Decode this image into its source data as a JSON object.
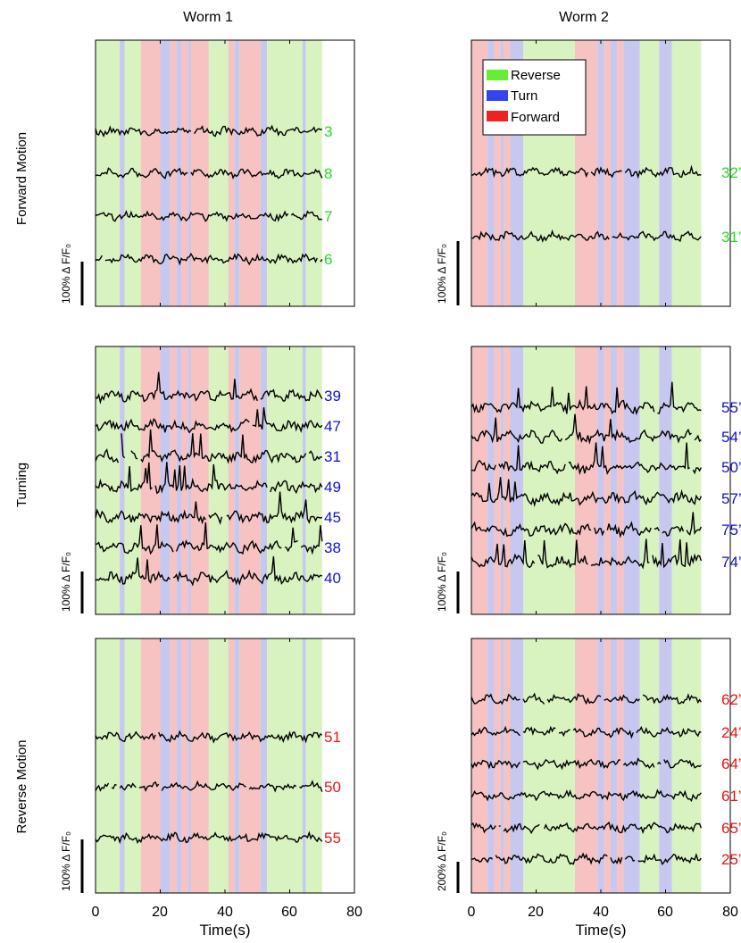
{
  "figure": {
    "column_titles": [
      "Worm 1",
      "Worm 2"
    ],
    "row_titles": [
      "Forward Motion",
      "Turning",
      "Reverse Motion"
    ],
    "x_axis_label": "Time(s)",
    "x_ticks": [
      "0",
      "20",
      "40",
      "60",
      "80"
    ]
  },
  "legend": [
    {
      "label": "Reverse",
      "color": "#66ee33"
    },
    {
      "label": "Turn",
      "color": "#3344ee"
    },
    {
      "label": "Forward",
      "color": "#ee2222"
    }
  ],
  "colors": {
    "reverse_band": "#d8f3c0",
    "turn_band": "#c6c8f0",
    "forward_band": "#f6c2c2",
    "trace": "#000000",
    "forward_neuron": "#22dd22",
    "turn_neuron": "#1111cc",
    "reverse_neuron": "#ee1111"
  },
  "chart_data": [
    {
      "type": "line",
      "panel": "worm1-forward",
      "worm": "Worm 1",
      "category": "Forward Motion",
      "xlim": [
        0,
        80
      ],
      "scale_bar_label": "100% Δ F/F₀",
      "neuron_color": "#22dd22",
      "neurons": [
        "3",
        "8",
        "7",
        "6"
      ],
      "behavior_bands": [
        {
          "state": "reverse",
          "start": 0,
          "end": 7.5
        },
        {
          "state": "turn",
          "start": 7.5,
          "end": 9
        },
        {
          "state": "reverse",
          "start": 9,
          "end": 14
        },
        {
          "state": "forward",
          "start": 14,
          "end": 20
        },
        {
          "state": "turn",
          "start": 20,
          "end": 23
        },
        {
          "state": "forward",
          "start": 23,
          "end": 25
        },
        {
          "state": "turn",
          "start": 25,
          "end": 26.5
        },
        {
          "state": "forward",
          "start": 26.5,
          "end": 28.5
        },
        {
          "state": "turn",
          "start": 28.5,
          "end": 29.5
        },
        {
          "state": "forward",
          "start": 29.5,
          "end": 35
        },
        {
          "state": "reverse",
          "start": 35,
          "end": 41
        },
        {
          "state": "forward",
          "start": 41,
          "end": 43
        },
        {
          "state": "turn",
          "start": 43,
          "end": 44.5
        },
        {
          "state": "forward",
          "start": 44.5,
          "end": 51
        },
        {
          "state": "turn",
          "start": 51,
          "end": 53
        },
        {
          "state": "reverse",
          "start": 53,
          "end": 64
        },
        {
          "state": "turn",
          "start": 64,
          "end": 65
        },
        {
          "state": "reverse",
          "start": 65,
          "end": 70
        }
      ]
    },
    {
      "type": "line",
      "panel": "worm2-forward",
      "worm": "Worm 2",
      "category": "Forward Motion",
      "xlim": [
        0,
        80
      ],
      "scale_bar_label": "100% Δ F/F₀",
      "neuron_color": "#22dd22",
      "neurons": [
        "32’",
        "31’"
      ],
      "behavior_bands": [
        {
          "state": "forward",
          "start": 0,
          "end": 5
        },
        {
          "state": "turn",
          "start": 5,
          "end": 7
        },
        {
          "state": "forward",
          "start": 7,
          "end": 9
        },
        {
          "state": "turn",
          "start": 9,
          "end": 10
        },
        {
          "state": "forward",
          "start": 10,
          "end": 12
        },
        {
          "state": "turn",
          "start": 12,
          "end": 16
        },
        {
          "state": "reverse",
          "start": 16,
          "end": 32
        },
        {
          "state": "forward",
          "start": 32,
          "end": 39
        },
        {
          "state": "turn",
          "start": 39,
          "end": 41
        },
        {
          "state": "forward",
          "start": 41,
          "end": 43
        },
        {
          "state": "turn",
          "start": 43,
          "end": 45
        },
        {
          "state": "forward",
          "start": 45,
          "end": 47
        },
        {
          "state": "turn",
          "start": 47,
          "end": 52
        },
        {
          "state": "reverse",
          "start": 52,
          "end": 58
        },
        {
          "state": "turn",
          "start": 58,
          "end": 62
        },
        {
          "state": "reverse",
          "start": 62,
          "end": 71
        }
      ]
    },
    {
      "type": "line",
      "panel": "worm1-turning",
      "worm": "Worm 1",
      "category": "Turning",
      "xlim": [
        0,
        80
      ],
      "scale_bar_label": "100% Δ F/F₀",
      "neuron_color": "#1111cc",
      "neurons": [
        "39",
        "47",
        "31",
        "49",
        "45",
        "38",
        "40"
      ],
      "behavior_bands": [
        {
          "state": "reverse",
          "start": 0,
          "end": 7.5
        },
        {
          "state": "turn",
          "start": 7.5,
          "end": 9
        },
        {
          "state": "reverse",
          "start": 9,
          "end": 14
        },
        {
          "state": "forward",
          "start": 14,
          "end": 20
        },
        {
          "state": "turn",
          "start": 20,
          "end": 23
        },
        {
          "state": "forward",
          "start": 23,
          "end": 25
        },
        {
          "state": "turn",
          "start": 25,
          "end": 26.5
        },
        {
          "state": "forward",
          "start": 26.5,
          "end": 28.5
        },
        {
          "state": "turn",
          "start": 28.5,
          "end": 29.5
        },
        {
          "state": "forward",
          "start": 29.5,
          "end": 35
        },
        {
          "state": "reverse",
          "start": 35,
          "end": 41
        },
        {
          "state": "forward",
          "start": 41,
          "end": 43
        },
        {
          "state": "turn",
          "start": 43,
          "end": 44.5
        },
        {
          "state": "forward",
          "start": 44.5,
          "end": 51
        },
        {
          "state": "turn",
          "start": 51,
          "end": 53
        },
        {
          "state": "reverse",
          "start": 53,
          "end": 64
        },
        {
          "state": "turn",
          "start": 64,
          "end": 65
        },
        {
          "state": "reverse",
          "start": 65,
          "end": 70
        }
      ]
    },
    {
      "type": "line",
      "panel": "worm2-turning",
      "worm": "Worm 2",
      "category": "Turning",
      "xlim": [
        0,
        80
      ],
      "scale_bar_label": "100% Δ F/F₀",
      "neuron_color": "#1111cc",
      "neurons": [
        "55’",
        "54’",
        "50’",
        "57’",
        "75’",
        "74’"
      ],
      "behavior_bands": [
        {
          "state": "forward",
          "start": 0,
          "end": 5
        },
        {
          "state": "turn",
          "start": 5,
          "end": 7
        },
        {
          "state": "forward",
          "start": 7,
          "end": 9
        },
        {
          "state": "turn",
          "start": 9,
          "end": 10
        },
        {
          "state": "forward",
          "start": 10,
          "end": 12
        },
        {
          "state": "turn",
          "start": 12,
          "end": 16
        },
        {
          "state": "reverse",
          "start": 16,
          "end": 32
        },
        {
          "state": "forward",
          "start": 32,
          "end": 39
        },
        {
          "state": "turn",
          "start": 39,
          "end": 41
        },
        {
          "state": "forward",
          "start": 41,
          "end": 43
        },
        {
          "state": "turn",
          "start": 43,
          "end": 45
        },
        {
          "state": "forward",
          "start": 45,
          "end": 47
        },
        {
          "state": "turn",
          "start": 47,
          "end": 52
        },
        {
          "state": "reverse",
          "start": 52,
          "end": 58
        },
        {
          "state": "turn",
          "start": 58,
          "end": 62
        },
        {
          "state": "reverse",
          "start": 62,
          "end": 71
        }
      ]
    },
    {
      "type": "line",
      "panel": "worm1-reverse",
      "worm": "Worm 1",
      "category": "Reverse Motion",
      "xlim": [
        0,
        80
      ],
      "scale_bar_label": "100% Δ F/F₀",
      "neuron_color": "#ee1111",
      "neurons": [
        "51",
        "50",
        "55"
      ],
      "behavior_bands": [
        {
          "state": "reverse",
          "start": 0,
          "end": 7.5
        },
        {
          "state": "turn",
          "start": 7.5,
          "end": 9
        },
        {
          "state": "reverse",
          "start": 9,
          "end": 14
        },
        {
          "state": "forward",
          "start": 14,
          "end": 20
        },
        {
          "state": "turn",
          "start": 20,
          "end": 23
        },
        {
          "state": "forward",
          "start": 23,
          "end": 25
        },
        {
          "state": "turn",
          "start": 25,
          "end": 26.5
        },
        {
          "state": "forward",
          "start": 26.5,
          "end": 28.5
        },
        {
          "state": "turn",
          "start": 28.5,
          "end": 29.5
        },
        {
          "state": "forward",
          "start": 29.5,
          "end": 35
        },
        {
          "state": "reverse",
          "start": 35,
          "end": 41
        },
        {
          "state": "forward",
          "start": 41,
          "end": 43
        },
        {
          "state": "turn",
          "start": 43,
          "end": 44.5
        },
        {
          "state": "forward",
          "start": 44.5,
          "end": 51
        },
        {
          "state": "turn",
          "start": 51,
          "end": 53
        },
        {
          "state": "reverse",
          "start": 53,
          "end": 64
        },
        {
          "state": "turn",
          "start": 64,
          "end": 65
        },
        {
          "state": "reverse",
          "start": 65,
          "end": 70
        }
      ]
    },
    {
      "type": "line",
      "panel": "worm2-reverse",
      "worm": "Worm 2",
      "category": "Reverse Motion",
      "xlim": [
        0,
        80
      ],
      "scale_bar_label": "200% Δ F/F₀",
      "neuron_color": "#ee1111",
      "neurons": [
        "62’",
        "24’",
        "64’",
        "61’",
        "65’",
        "25’"
      ],
      "behavior_bands": [
        {
          "state": "forward",
          "start": 0,
          "end": 5
        },
        {
          "state": "turn",
          "start": 5,
          "end": 7
        },
        {
          "state": "forward",
          "start": 7,
          "end": 9
        },
        {
          "state": "turn",
          "start": 9,
          "end": 10
        },
        {
          "state": "forward",
          "start": 10,
          "end": 12
        },
        {
          "state": "turn",
          "start": 12,
          "end": 16
        },
        {
          "state": "reverse",
          "start": 16,
          "end": 32
        },
        {
          "state": "forward",
          "start": 32,
          "end": 39
        },
        {
          "state": "turn",
          "start": 39,
          "end": 41
        },
        {
          "state": "forward",
          "start": 41,
          "end": 43
        },
        {
          "state": "turn",
          "start": 43,
          "end": 45
        },
        {
          "state": "forward",
          "start": 45,
          "end": 47
        },
        {
          "state": "turn",
          "start": 47,
          "end": 52
        },
        {
          "state": "reverse",
          "start": 52,
          "end": 58
        },
        {
          "state": "turn",
          "start": 58,
          "end": 62
        },
        {
          "state": "reverse",
          "start": 62,
          "end": 71
        }
      ]
    }
  ]
}
